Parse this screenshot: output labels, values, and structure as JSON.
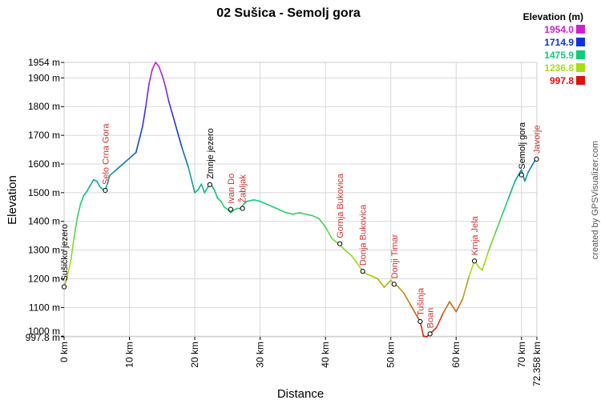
{
  "chart_data": {
    "type": "line",
    "title": "02 Sušica - Semolj gora",
    "xlabel": "Distance",
    "ylabel": "Elevation",
    "xlim": [
      0,
      72.358
    ],
    "ylim": [
      997.8,
      1954
    ],
    "x_unit": "km",
    "y_unit": "m",
    "x_ticks": [
      0,
      10,
      20,
      30,
      40,
      50,
      60,
      70,
      72.358
    ],
    "x_tick_labels": [
      "0 km",
      "10 km",
      "20 km",
      "30 km",
      "40 km",
      "50 km",
      "60 km",
      "70 km",
      "72.358 km"
    ],
    "y_ticks": [
      997.8,
      1000,
      1100,
      1200,
      1300,
      1400,
      1500,
      1600,
      1700,
      1800,
      1900,
      1954
    ],
    "y_tick_labels": [
      "997.8 m",
      "1000 m",
      "1100 m",
      "1200 m",
      "1300 m",
      "1400 m",
      "1500 m",
      "1600 m",
      "1700 m",
      "1800 m",
      "1900 m",
      "1954 m"
    ],
    "grid": true,
    "legend": {
      "title": "Elevation (m)",
      "position": "top-right",
      "entries": [
        {
          "label": "1954.0",
          "color": "#cc22cc"
        },
        {
          "label": "1714.9",
          "color": "#1133dd"
        },
        {
          "label": "1475.9",
          "color": "#11cc77"
        },
        {
          "label": "1236.8",
          "color": "#aadd11"
        },
        {
          "label": "997.8",
          "color": "#dd1111"
        }
      ]
    },
    "series": [
      {
        "x": [
          0,
          0.5,
          1,
          1.5,
          2,
          2.5,
          3,
          3.5,
          4,
          4.5,
          5,
          5.5,
          6,
          6.3,
          7,
          8,
          9,
          10,
          11,
          12,
          12.5,
          13,
          13.5,
          14,
          14.5,
          15,
          15.5,
          16,
          17,
          18,
          19,
          20,
          20.5,
          21,
          21.5,
          22,
          22.5,
          23,
          23.5,
          24,
          24.5,
          25,
          25.5,
          26,
          26.5,
          27,
          27.5,
          28,
          29,
          30,
          31,
          32,
          33,
          34,
          35,
          36,
          37,
          38,
          39,
          40,
          41,
          42,
          43,
          44,
          45,
          45.7,
          46,
          47,
          48,
          49,
          50,
          50.5,
          51,
          52,
          53,
          54,
          54.5,
          55,
          55.5,
          56,
          57,
          58,
          59,
          60,
          61,
          62,
          62.8,
          63.5,
          64,
          65,
          66,
          67,
          68,
          69,
          69.5,
          70,
          70.5,
          71,
          71.5,
          72,
          72.358
        ],
        "y": [
          1172,
          1210,
          1260,
          1340,
          1410,
          1460,
          1490,
          1505,
          1525,
          1545,
          1540,
          1520,
          1510,
          1508,
          1560,
          1580,
          1600,
          1620,
          1640,
          1730,
          1800,
          1880,
          1930,
          1954,
          1940,
          1910,
          1870,
          1820,
          1740,
          1660,
          1590,
          1500,
          1510,
          1530,
          1500,
          1520,
          1528,
          1510,
          1480,
          1470,
          1450,
          1442,
          1430,
          1440,
          1445,
          1445,
          1460,
          1470,
          1475,
          1470,
          1460,
          1450,
          1440,
          1430,
          1425,
          1430,
          1425,
          1420,
          1410,
          1380,
          1340,
          1322,
          1300,
          1280,
          1250,
          1226,
          1220,
          1210,
          1200,
          1170,
          1195,
          1181,
          1175,
          1150,
          1110,
          1070,
          1051,
          1000,
          998,
          1008,
          1030,
          1080,
          1120,
          1085,
          1130,
          1210,
          1262,
          1240,
          1230,
          1300,
          1360,
          1420,
          1480,
          1540,
          1560,
          1580,
          1540,
          1570,
          1590,
          1610,
          1617
        ]
      }
    ],
    "waypoints": [
      {
        "name": "Sušičko jezero",
        "x": 0,
        "y": 1172,
        "color": "#000000"
      },
      {
        "name": "Selo Crna Gora",
        "x": 6.3,
        "y": 1508,
        "color": "#cc3333"
      },
      {
        "name": "Zmnje jezero",
        "x": 22.3,
        "y": 1528,
        "color": "#000000"
      },
      {
        "name": "Ivan Do",
        "x": 25.5,
        "y": 1442,
        "color": "#cc3333"
      },
      {
        "name": "Žabljak",
        "x": 27.3,
        "y": 1445,
        "color": "#cc3333"
      },
      {
        "name": "Gornja Bukovica",
        "x": 42.2,
        "y": 1322,
        "color": "#cc3333"
      },
      {
        "name": "Donja Bukovica",
        "x": 45.7,
        "y": 1226,
        "color": "#cc3333"
      },
      {
        "name": "Donji Timar",
        "x": 50.5,
        "y": 1181,
        "color": "#cc3333"
      },
      {
        "name": "Tušinja",
        "x": 54.5,
        "y": 1051,
        "color": "#cc3333"
      },
      {
        "name": "Boan",
        "x": 56.0,
        "y": 1008,
        "color": "#cc3333"
      },
      {
        "name": "Krnja Jela",
        "x": 62.8,
        "y": 1262,
        "color": "#cc3333"
      },
      {
        "name": "Semolj gora",
        "x": 70.0,
        "y": 1562,
        "color": "#000000"
      },
      {
        "name": "Javorje",
        "x": 72.3,
        "y": 1617,
        "color": "#cc3333"
      }
    ]
  },
  "credit": "created by GPSVisualizer.com"
}
